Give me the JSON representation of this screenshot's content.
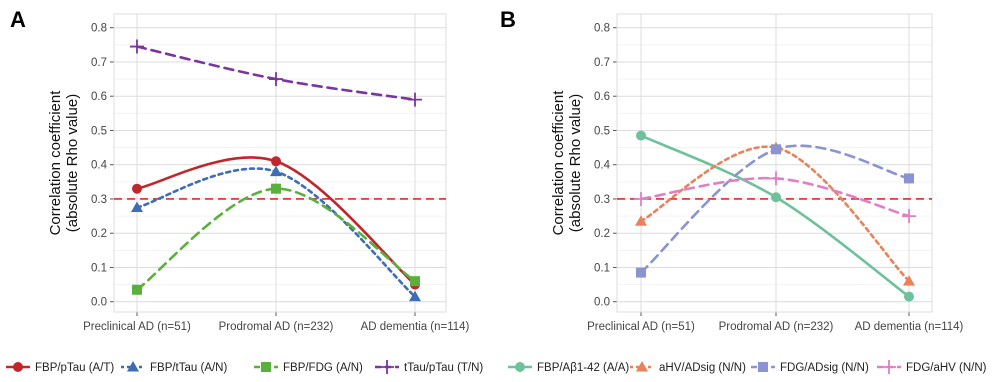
{
  "chart_data": [
    {
      "panel_label": "A",
      "type": "line",
      "ylabel": [
        "Correlation coefficient",
        "(absolute Rho value)"
      ],
      "categories": [
        "Preclinical AD (n=51)",
        "Prodromal AD (n=232)",
        "AD dementia (n=114)"
      ],
      "ylim": [
        -0.03,
        0.84
      ],
      "yticks": [
        "0.0",
        "0.1",
        "0.2",
        "0.3",
        "0.4",
        "0.5",
        "0.6",
        "0.7",
        "0.8"
      ],
      "grid": true,
      "reference_line": 0.3,
      "series": [
        {
          "name": "FBP/pTau (A/T)",
          "values": [
            0.33,
            0.41,
            0.05
          ],
          "color": "#c0272d",
          "dash": "solid",
          "marker": "circle"
        },
        {
          "name": "FBP/tTau (A/N)",
          "values": [
            0.275,
            0.38,
            0.015
          ],
          "color": "#3e6db5",
          "dash": "dotted",
          "marker": "triangle"
        },
        {
          "name": "FBP/FDG (A/N)",
          "values": [
            0.035,
            0.33,
            0.06
          ],
          "color": "#5ab03c",
          "dash": "dashed",
          "marker": "square"
        },
        {
          "name": "tTau/pTau (T/N)",
          "values": [
            0.745,
            0.65,
            0.59
          ],
          "color": "#7b35a0",
          "dash": "dashed",
          "marker": "plus"
        }
      ]
    },
    {
      "panel_label": "B",
      "type": "line",
      "ylabel": [
        "Correlation coefficient",
        "(absolute Rho value)"
      ],
      "categories": [
        "Preclinical AD (n=51)",
        "Prodromal AD (n=232)",
        "AD dementia (n=114)"
      ],
      "ylim": [
        -0.03,
        0.84
      ],
      "yticks": [
        "0.0",
        "0.1",
        "0.2",
        "0.3",
        "0.4",
        "0.5",
        "0.6",
        "0.7",
        "0.8"
      ],
      "grid": true,
      "reference_line": 0.3,
      "series": [
        {
          "name": "FBP/Aβ1-42 (A/A)",
          "values": [
            0.485,
            0.305,
            0.015
          ],
          "color": "#6fc19b",
          "dash": "solid",
          "marker": "circle"
        },
        {
          "name": "aHV/ADsig (N/N)",
          "values": [
            0.235,
            0.45,
            0.06
          ],
          "color": "#e8825a",
          "dash": "dotted",
          "marker": "triangle"
        },
        {
          "name": "FDG/ADsig (N/N)",
          "values": [
            0.085,
            0.445,
            0.36
          ],
          "color": "#8b93d1",
          "dash": "dashed",
          "marker": "square"
        },
        {
          "name": "FDG/aHV (N/N)",
          "values": [
            0.3,
            0.36,
            0.25
          ],
          "color": "#e07fc6",
          "dash": "dashed",
          "marker": "plus"
        }
      ]
    }
  ]
}
